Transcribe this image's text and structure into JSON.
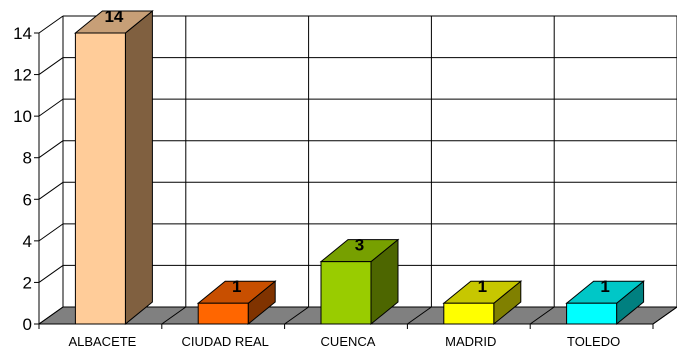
{
  "chart_data": {
    "type": "bar",
    "style": "3d-column",
    "categories": [
      "ALBACETE",
      "CIUDAD REAL",
      "CUENCA",
      "MADRID",
      "TOLEDO"
    ],
    "values": [
      14,
      1,
      3,
      1,
      1
    ],
    "data_labels": [
      "14",
      "1",
      "3",
      "1",
      "1"
    ],
    "ylim": [
      0,
      14
    ],
    "yticks": [
      0,
      2,
      4,
      6,
      8,
      10,
      12,
      14
    ],
    "ytick_labels": [
      "0",
      "2",
      "4",
      "6",
      "8",
      "10",
      "12",
      "14"
    ],
    "title": "",
    "xlabel": "",
    "ylabel": "",
    "grid": true,
    "legend": "none",
    "colors": {
      "bars": [
        {
          "front": "#FFCC99",
          "top": "#C79F77",
          "side": "#806040"
        },
        {
          "front": "#FF6600",
          "top": "#C84F00",
          "side": "#803300"
        },
        {
          "front": "#99CC00",
          "top": "#77A000",
          "side": "#4D6600"
        },
        {
          "front": "#FFFF00",
          "top": "#C7C700",
          "side": "#808000"
        },
        {
          "front": "#00FFFF",
          "top": "#00C7C7",
          "side": "#008080"
        }
      ],
      "floor": "#808080",
      "gridlines": "#000000",
      "background": "#FFFFFF"
    }
  }
}
